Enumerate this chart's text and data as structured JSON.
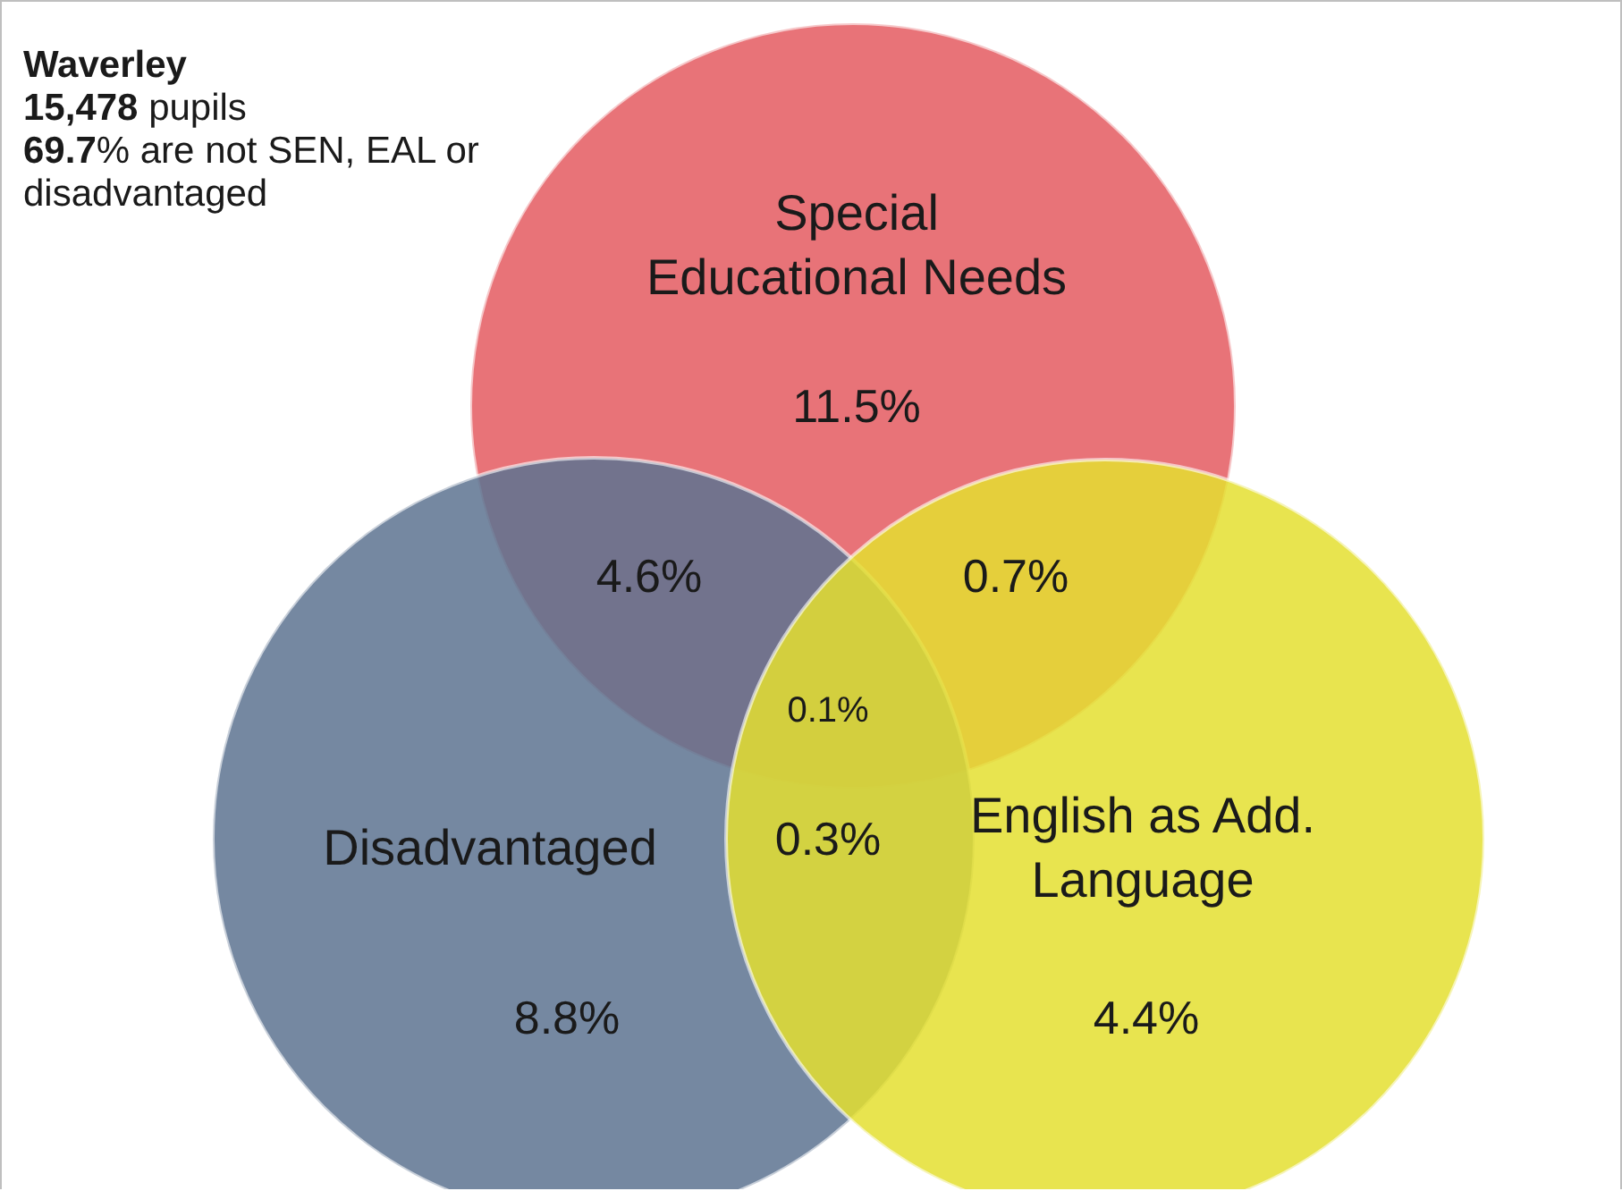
{
  "chart_data": {
    "type": "other",
    "categories": [
      "Special Educational Needs",
      "Disadvantaged",
      "English as Add. Language"
    ],
    "values": [
      11.5,
      8.8,
      4.4
    ],
    "value_labels": [
      "11.5%",
      "8.8%",
      "4.4%"
    ],
    "colors": [
      "#e45a60",
      "#5d7390",
      "#e4df30"
    ],
    "annotations": [
      "Waverley",
      "15,478 pupils",
      "69.7% are not SEN, EAL or disadvantaged",
      "4.6%",
      "0.7%",
      "0.1%",
      "0.3%"
    ]
  }
}
